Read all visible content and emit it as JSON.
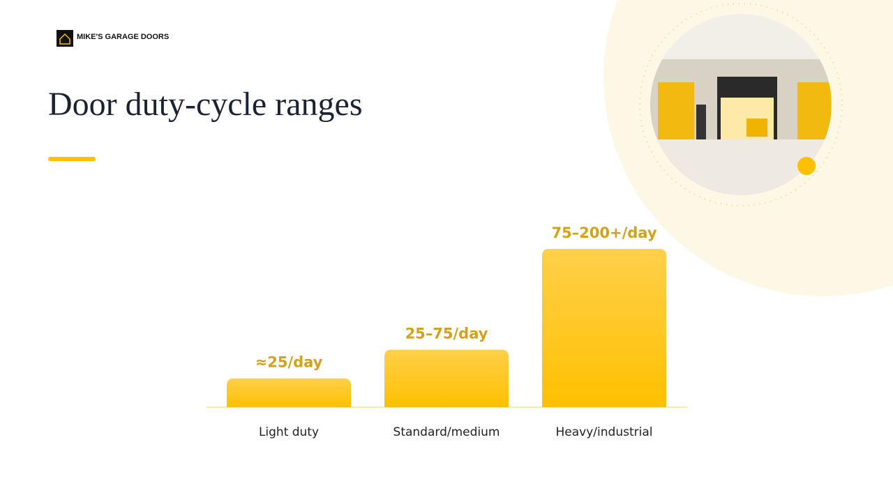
{
  "brand": "MIKE'S GARAGE DOORS",
  "chart_data": {
    "type": "bar",
    "title": "Door duty-cycle ranges",
    "categories": [
      "Light duty",
      "Standard/medium",
      "Heavy/industrial"
    ],
    "values": [
      25,
      50,
      137.5
    ],
    "value_labels": [
      "≈25/day",
      "25–75/day",
      "75–200+/day"
    ],
    "color": "#ffc000"
  }
}
